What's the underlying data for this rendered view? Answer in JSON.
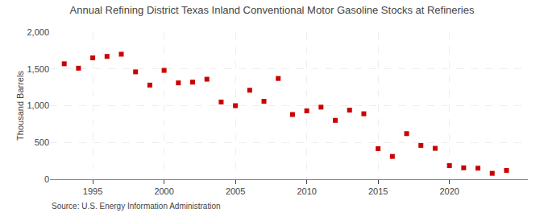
{
  "chart_data": {
    "type": "scatter",
    "title": "Annual Refining District Texas Inland Conventional Motor Gasoline Stocks at Refineries",
    "y_label": "Thousand Barrels",
    "annotations": [
      "Source: U.S. Energy Information Administration"
    ],
    "x": [
      1993,
      1994,
      1995,
      1996,
      1997,
      1998,
      1999,
      2000,
      2001,
      2002,
      2003,
      2004,
      2005,
      2006,
      2007,
      2008,
      2009,
      2010,
      2011,
      2012,
      2013,
      2014,
      2015,
      2016,
      2017,
      2018,
      2019,
      2020,
      2021,
      2022,
      2023,
      2024
    ],
    "values": [
      1570,
      1510,
      1650,
      1670,
      1700,
      1460,
      1280,
      1480,
      1310,
      1320,
      1360,
      1050,
      1000,
      1210,
      1060,
      1370,
      880,
      930,
      980,
      800,
      940,
      890,
      415,
      310,
      620,
      460,
      420,
      185,
      155,
      150,
      80,
      120
    ],
    "color": "#cc0000",
    "marker": "square",
    "xlim": [
      1992.0,
      2025.5
    ],
    "xticks": [
      1995,
      2000,
      2005,
      2010,
      2015,
      2020
    ],
    "ylim": [
      0,
      2000
    ],
    "yticks": [
      0,
      500,
      {
        "value": 1000,
        "label": "1,000"
      },
      {
        "value": 1500,
        "label": "1,500"
      },
      {
        "value": 2000,
        "label": "2,000"
      }
    ],
    "grid": true
  }
}
